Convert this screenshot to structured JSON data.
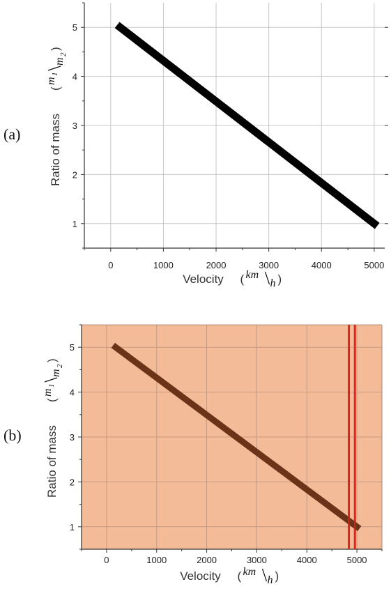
{
  "chart_data": [
    {
      "panel": "(a)",
      "type": "line",
      "xlabel": "Velocity",
      "xlabel_unit": {
        "numerator": "km",
        "denominator": "h"
      },
      "ylabel": "Ratio of mass",
      "ylabel_unit": {
        "numerator": "m",
        "numerator_sub": "1",
        "denominator": "m",
        "denominator_sub": "2"
      },
      "xlim": [
        -500,
        5200
      ],
      "ylim": [
        0.5,
        5.5
      ],
      "xticks": [
        0,
        1000,
        2000,
        3000,
        4000,
        5000
      ],
      "yticks": [
        1,
        2,
        3,
        4,
        5
      ],
      "grid": true,
      "background": "#ffffff",
      "series": [
        {
          "x": [
            180,
            5000
          ],
          "y": [
            5,
            1
          ],
          "color": "#000000"
        }
      ]
    },
    {
      "panel": "(b)",
      "type": "line",
      "xlabel": "Velocity",
      "xlabel_unit": {
        "numerator": "km",
        "denominator": "h"
      },
      "ylabel": "Ratio of mass",
      "ylabel_unit": {
        "numerator": "m",
        "numerator_sub": "1",
        "denominator": "m",
        "denominator_sub": "2"
      },
      "xlim": [
        -500,
        5500
      ],
      "ylim": [
        0.5,
        5.5
      ],
      "xticks": [
        0,
        1000,
        2000,
        3000,
        4000,
        5000
      ],
      "yticks": [
        1,
        2,
        3,
        4,
        5
      ],
      "grid": true,
      "background": "#f4bb98",
      "series": [
        {
          "x": [
            180,
            5000
          ],
          "y": [
            5,
            1
          ],
          "color": "#6b3418"
        }
      ],
      "vertical_lines": [
        {
          "x": 4840,
          "color": "#d42a1e"
        },
        {
          "x": 4960,
          "color": "#d42a1e"
        }
      ]
    }
  ]
}
